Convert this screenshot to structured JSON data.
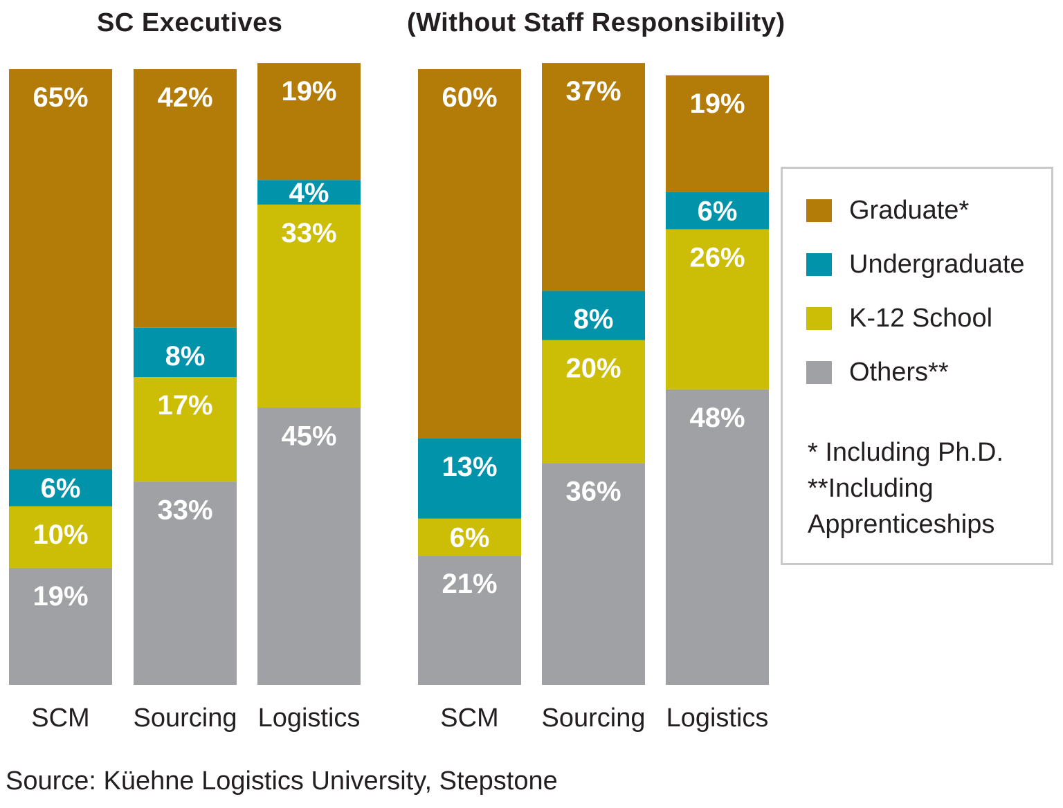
{
  "chart_data": [
    {
      "type": "bar",
      "stacked": true,
      "title": "SC Executives",
      "categories": [
        "SCM",
        "Sourcing",
        "Logistics"
      ],
      "series": [
        {
          "name": "Others**",
          "values": [
            19,
            33,
            45
          ]
        },
        {
          "name": "K-12 School",
          "values": [
            10,
            17,
            33
          ]
        },
        {
          "name": "Undergraduate",
          "values": [
            6,
            8,
            4
          ]
        },
        {
          "name": "Graduate*",
          "values": [
            65,
            42,
            19
          ]
        }
      ],
      "value_labels": true,
      "unit": "%",
      "xlabel": "",
      "ylabel": "",
      "ylim": [
        0,
        100
      ],
      "grid": false
    },
    {
      "type": "bar",
      "stacked": true,
      "title": "(Without Staff Responsibility)",
      "categories": [
        "SCM",
        "Sourcing",
        "Logistics"
      ],
      "series": [
        {
          "name": "Others**",
          "values": [
            21,
            36,
            48
          ]
        },
        {
          "name": "K-12 School",
          "values": [
            6,
            20,
            26
          ]
        },
        {
          "name": "Undergraduate",
          "values": [
            13,
            8,
            6
          ]
        },
        {
          "name": "Graduate*",
          "values": [
            60,
            37,
            19
          ]
        }
      ],
      "value_labels": true,
      "unit": "%",
      "xlabel": "",
      "ylabel": "",
      "ylim": [
        0,
        100
      ],
      "grid": false
    }
  ],
  "colors": {
    "Graduate*": "#b37c09",
    "Undergraduate": "#0093a9",
    "K-12 School": "#ccbd07",
    "Others**": "#a0a1a5"
  },
  "legend": {
    "placement": "right",
    "items": [
      {
        "label": "Graduate*",
        "color": "#b37c09"
      },
      {
        "label": "Undergraduate",
        "color": "#0093a9"
      },
      {
        "label": "K-12 School",
        "color": "#ccbd07"
      },
      {
        "label": "Others**",
        "color": "#a0a1a5"
      }
    ],
    "footnotes": [
      "* Including Ph.D.",
      "**Including",
      "Apprenticeships"
    ]
  },
  "source": "Source: Küehne Logistics University, Stepstone"
}
